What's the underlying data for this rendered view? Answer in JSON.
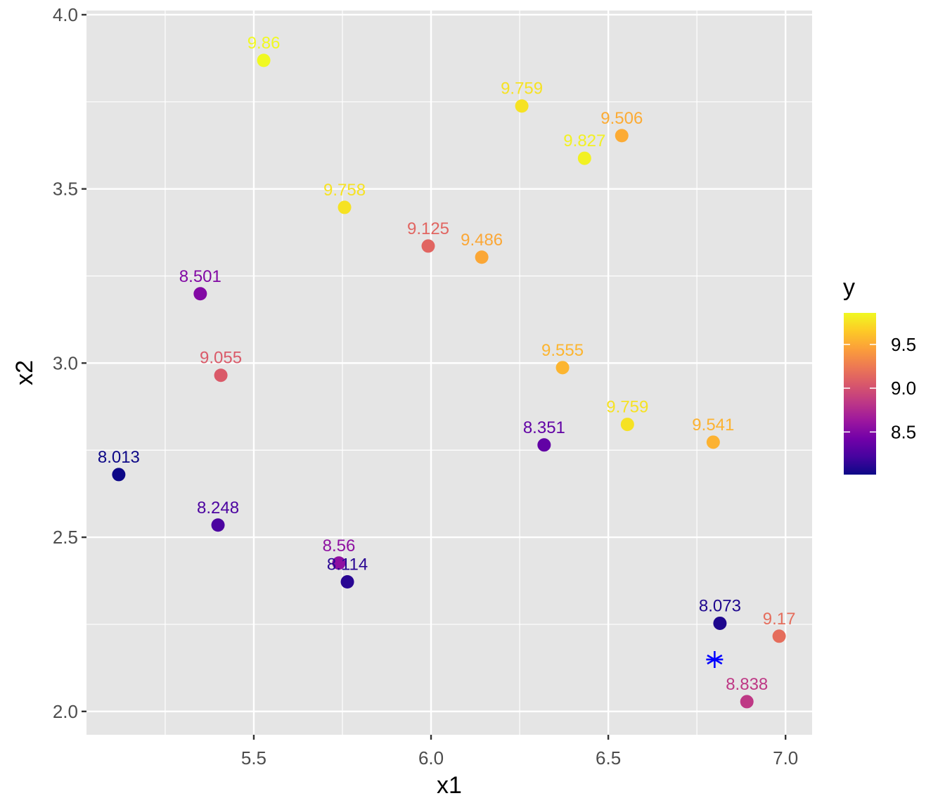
{
  "chart_data": {
    "type": "scatter",
    "title": "",
    "xlabel": "x1",
    "ylabel": "x2",
    "xlim": [
      5.028,
      7.075
    ],
    "ylim": [
      1.933,
      4.012
    ],
    "x_ticks": [
      5.5,
      6.0,
      6.5,
      7.0
    ],
    "x_tick_labels": [
      "5.5",
      "6.0",
      "6.5",
      "7.0"
    ],
    "x_minor": [
      5.25,
      5.75,
      6.25,
      6.75
    ],
    "y_ticks": [
      2.0,
      2.5,
      3.0,
      3.5,
      4.0
    ],
    "y_tick_labels": [
      "2.0",
      "2.5",
      "3.0",
      "3.5",
      "4.0"
    ],
    "y_minor": [
      2.25,
      2.75,
      3.25,
      3.75
    ],
    "grid": true,
    "panel_background": "#e5e5e5",
    "grid_color": "#ffffff",
    "color_scale": {
      "name": "plasma",
      "variable": "y",
      "range": [
        8.013,
        9.86
      ],
      "stops": [
        "#0d0887",
        "#46039f",
        "#7201a8",
        "#9c179e",
        "#bd3786",
        "#d8576b",
        "#ed7953",
        "#fb9f3a",
        "#fdca26",
        "#f0f921"
      ]
    },
    "legend": {
      "title": "y",
      "position": "right",
      "ticks": [
        9.5,
        9.0,
        8.5
      ],
      "tick_labels": [
        "9.5",
        "9.0",
        "8.5"
      ]
    },
    "points": [
      {
        "x": 5.528,
        "y": 3.869,
        "value": 9.86,
        "label": "9.86"
      },
      {
        "x": 6.256,
        "y": 3.738,
        "value": 9.759,
        "label": "9.759"
      },
      {
        "x": 6.538,
        "y": 3.653,
        "value": 9.506,
        "label": "9.506"
      },
      {
        "x": 6.433,
        "y": 3.588,
        "value": 9.827,
        "label": "9.827"
      },
      {
        "x": 5.756,
        "y": 3.447,
        "value": 9.758,
        "label": "9.758"
      },
      {
        "x": 5.992,
        "y": 3.336,
        "value": 9.125,
        "label": "9.125"
      },
      {
        "x": 6.143,
        "y": 3.304,
        "value": 9.486,
        "label": "9.486"
      },
      {
        "x": 5.349,
        "y": 3.199,
        "value": 8.501,
        "label": "8.501"
      },
      {
        "x": 5.407,
        "y": 2.965,
        "value": 9.055,
        "label": "9.055"
      },
      {
        "x": 6.371,
        "y": 2.987,
        "value": 9.555,
        "label": "9.555"
      },
      {
        "x": 6.554,
        "y": 2.824,
        "value": 9.759,
        "label": "9.759"
      },
      {
        "x": 6.319,
        "y": 2.765,
        "value": 8.351,
        "label": "8.351"
      },
      {
        "x": 6.796,
        "y": 2.773,
        "value": 9.541,
        "label": "9.541"
      },
      {
        "x": 5.119,
        "y": 2.68,
        "value": 8.013,
        "label": "8.013"
      },
      {
        "x": 5.399,
        "y": 2.535,
        "value": 8.248,
        "label": "8.248"
      },
      {
        "x": 5.74,
        "y": 2.426,
        "value": 8.56,
        "label": "8.56"
      },
      {
        "x": 5.764,
        "y": 2.372,
        "value": 8.114,
        "label": "8.114"
      },
      {
        "x": 6.815,
        "y": 2.253,
        "value": 8.073,
        "label": "8.073"
      },
      {
        "x": 6.982,
        "y": 2.216,
        "value": 9.17,
        "label": "9.17"
      },
      {
        "x": 6.891,
        "y": 2.028,
        "value": 8.838,
        "label": "8.838"
      }
    ],
    "highlight_point": {
      "x": 6.8,
      "y": 2.149,
      "marker": "asterisk",
      "color": "#0000ff"
    }
  }
}
